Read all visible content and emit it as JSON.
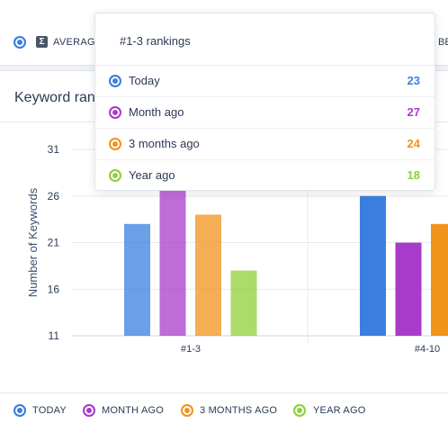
{
  "toolbar": {
    "avg_label": "AVERAG",
    "cut_label": "BE"
  },
  "panel": {
    "title": "Keyword rankings"
  },
  "tooltip": {
    "title": "#1-3 rankings",
    "rows": [
      {
        "label": "Today",
        "value": "23",
        "color": "#3a7fe0"
      },
      {
        "label": "Month ago",
        "value": "27",
        "color": "#a83bc9"
      },
      {
        "label": "3 months ago",
        "value": "24",
        "color": "#f2931c"
      },
      {
        "label": "Year ago",
        "value": "18",
        "color": "#8fcf3a"
      }
    ]
  },
  "legend": [
    {
      "label": "TODAY",
      "color": "#3a7fe0"
    },
    {
      "label": "MONTH AGO",
      "color": "#a83bc9"
    },
    {
      "label": "3 MONTHS AGO",
      "color": "#f2931c"
    },
    {
      "label": "YEAR AGO",
      "color": "#8fcf3a"
    }
  ],
  "chart_data": {
    "type": "bar",
    "ylabel": "Number of Keywords",
    "ylim": [
      11,
      31
    ],
    "yticks": [
      11,
      16,
      21,
      26,
      31
    ],
    "categories": [
      "#1-3",
      "#4-10"
    ],
    "series": [
      {
        "name": "Today",
        "color": "#3a7fe0",
        "values": [
          23,
          26
        ]
      },
      {
        "name": "Month ago",
        "color": "#a83bc9",
        "values": [
          27,
          21
        ]
      },
      {
        "name": "3 months ago",
        "color": "#f2931c",
        "values": [
          24,
          23
        ]
      },
      {
        "name": "Year ago",
        "color": "#8fcf3a",
        "values": [
          18,
          null
        ]
      }
    ],
    "grid": true
  }
}
